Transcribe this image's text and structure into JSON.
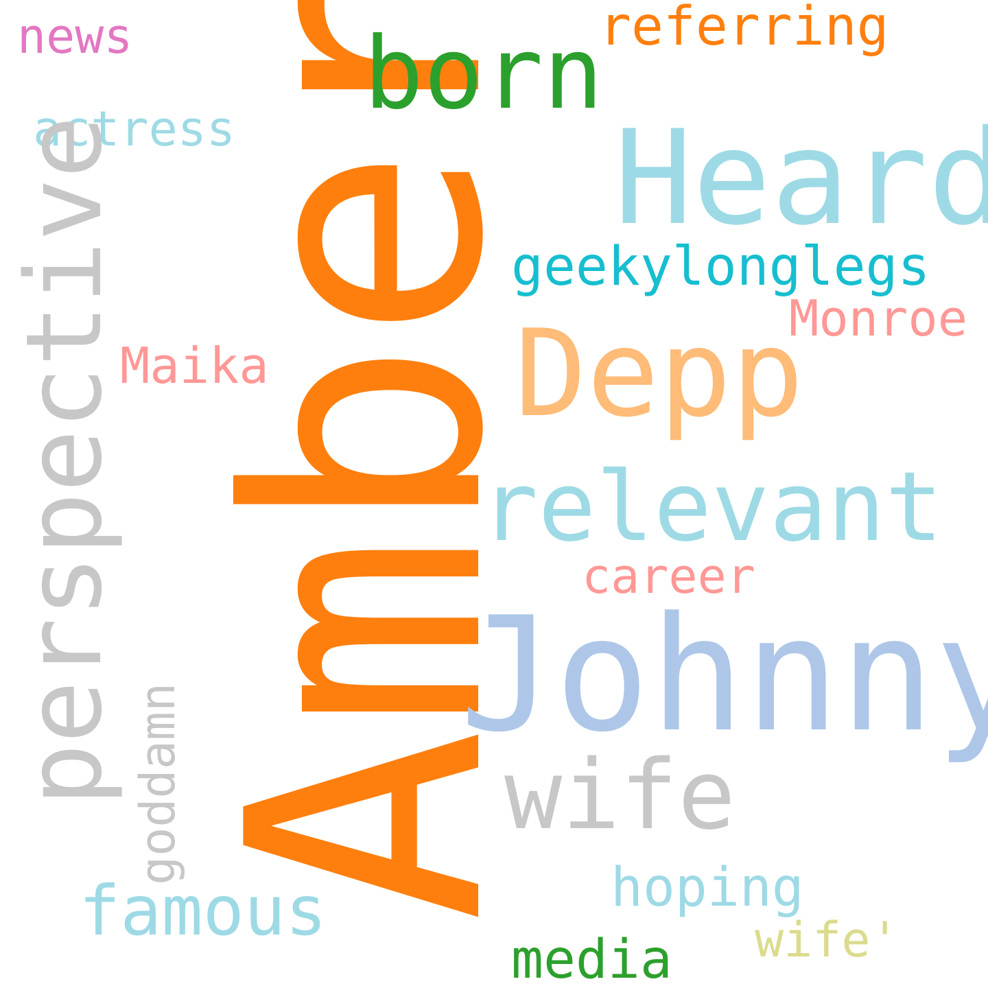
{
  "word_cloud": {
    "words": [
      {
        "text": "Amber",
        "color": "#ff7f0e"
      },
      {
        "text": "born",
        "color": "#2ca02c"
      },
      {
        "text": "referring",
        "color": "#ff7f0e"
      },
      {
        "text": "news",
        "color": "#e377c2"
      },
      {
        "text": "Heard",
        "color": "#9edae5"
      },
      {
        "text": "actress",
        "color": "#9edae5"
      },
      {
        "text": "perspective",
        "color": "#c7c7c7"
      },
      {
        "text": "geekylonglegs",
        "color": "#17becf"
      },
      {
        "text": "Monroe",
        "color": "#ff9896"
      },
      {
        "text": "Maika",
        "color": "#ff9896"
      },
      {
        "text": "Depp",
        "color": "#ffbb78"
      },
      {
        "text": "relevant",
        "color": "#9edae5"
      },
      {
        "text": "career",
        "color": "#ff9896"
      },
      {
        "text": "Johnny",
        "color": "#aec7e8"
      },
      {
        "text": "wife",
        "color": "#c7c7c7"
      },
      {
        "text": "goddamn",
        "color": "#c7c7c7"
      },
      {
        "text": "famous",
        "color": "#9edae5"
      },
      {
        "text": "hoping",
        "color": "#9edae5"
      },
      {
        "text": "wife'",
        "color": "#dbdb8d"
      },
      {
        "text": "media",
        "color": "#2ca02c"
      }
    ]
  }
}
